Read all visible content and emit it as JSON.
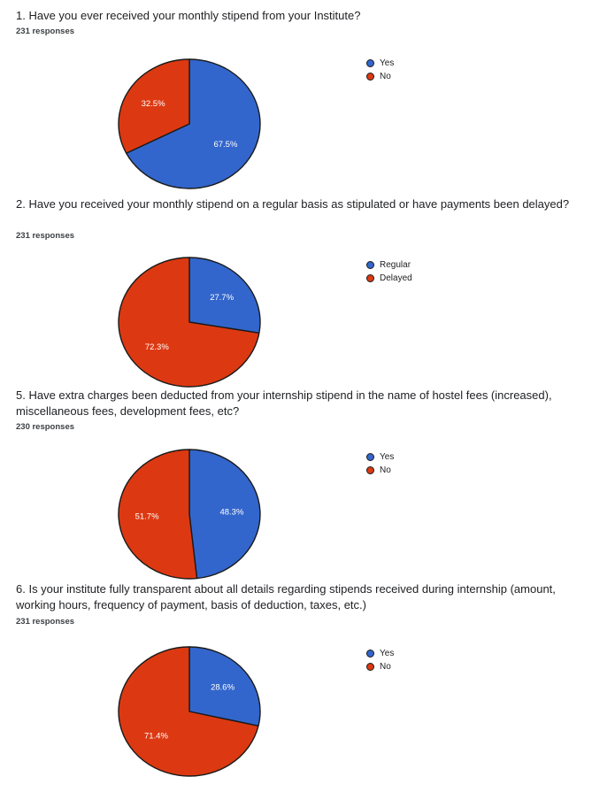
{
  "chart_data": [
    {
      "type": "pie",
      "title": "1. Have you ever received your monthly stipend from your Institute?",
      "subtitle": "231 responses",
      "categories": [
        "Yes",
        "No"
      ],
      "values": [
        67.5,
        32.5
      ],
      "labels": [
        "67.5%",
        "32.5%"
      ],
      "colors": [
        "#3366cc",
        "#dc3912"
      ],
      "legend": "right"
    },
    {
      "type": "pie",
      "title": "2. Have you received your monthly stipend on a regular basis as stipulated or have payments been delayed?",
      "subtitle": "231 responses",
      "categories": [
        "Regular",
        "Delayed"
      ],
      "values": [
        27.7,
        72.3
      ],
      "labels": [
        "27.7%",
        "72.3%"
      ],
      "colors": [
        "#3366cc",
        "#dc3912"
      ],
      "legend": "right"
    },
    {
      "type": "pie",
      "title": "5. Have extra charges been deducted from your internship stipend in the name of hostel fees (increased), miscellaneous fees, development fees, etc?",
      "subtitle": "230 responses",
      "categories": [
        "Yes",
        "No"
      ],
      "values": [
        48.3,
        51.7
      ],
      "labels": [
        "48.3%",
        "51.7%"
      ],
      "colors": [
        "#3366cc",
        "#dc3912"
      ],
      "legend": "right"
    },
    {
      "type": "pie",
      "title": "6. Is your institute fully transparent about all details regarding stipends received during internship (amount, working hours, frequency of payment, basis of deduction, taxes, etc.)",
      "subtitle": "231 responses",
      "categories": [
        "Yes",
        "No"
      ],
      "values": [
        28.6,
        71.4
      ],
      "labels": [
        "28.6%",
        "71.4%"
      ],
      "colors": [
        "#3366cc",
        "#dc3912"
      ],
      "legend": "right"
    }
  ]
}
